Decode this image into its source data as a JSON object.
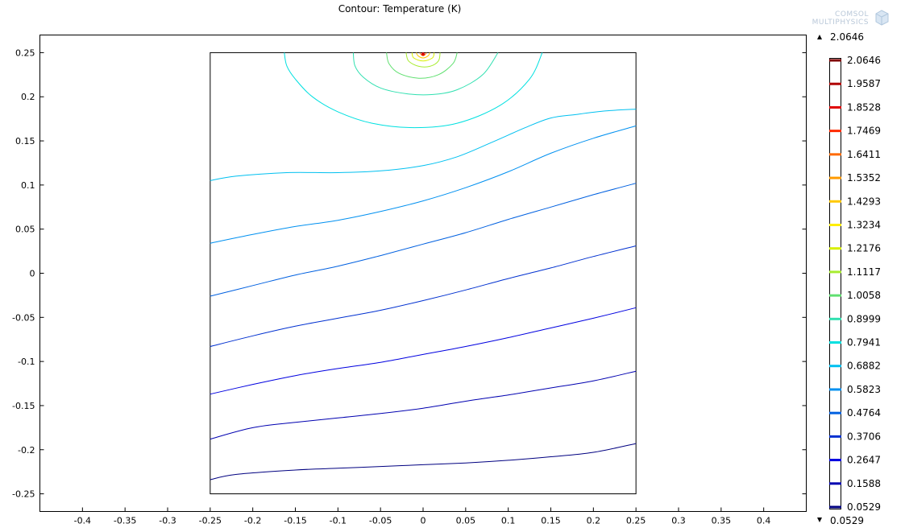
{
  "chart_data": {
    "type": "contour",
    "title": "Contour: Temperature (K)",
    "xlim": [
      -0.45,
      0.45
    ],
    "ylim": [
      -0.27,
      0.27
    ],
    "x_ticks": [
      -0.4,
      -0.35,
      -0.3,
      -0.25,
      -0.2,
      -0.15,
      -0.1,
      -0.05,
      0,
      0.05,
      0.1,
      0.15,
      0.2,
      0.25,
      0.3,
      0.35,
      0.4
    ],
    "x_tick_labels": [
      "-0.4",
      "-0.35",
      "-0.3",
      "-0.25",
      "-0.2",
      "-0.15",
      "-0.1",
      "-0.05",
      "0",
      "0.05",
      "0.1",
      "0.15",
      "0.2",
      "0.25",
      "0.3",
      "0.35",
      "0.4"
    ],
    "y_ticks": [
      0.25,
      0.2,
      0.15,
      0.1,
      0.05,
      0,
      -0.05,
      -0.1,
      -0.15,
      -0.2,
      -0.25
    ],
    "y_tick_labels": [
      "0.25",
      "0.2",
      "0.15",
      "0.1",
      "0.05",
      "0",
      "-0.05",
      "-0.1",
      "-0.15",
      "-0.2",
      "-0.25"
    ],
    "domain_box": {
      "x": [
        -0.25,
        0.25
      ],
      "y": [
        -0.25,
        0.25
      ]
    },
    "legend": {
      "max_label": "2.0646",
      "min_label": "0.0529",
      "levels": [
        {
          "label": "2.0646",
          "color": "#800000"
        },
        {
          "label": "1.9587",
          "color": "#b00000"
        },
        {
          "label": "1.8528",
          "color": "#e00000"
        },
        {
          "label": "1.7469",
          "color": "#ff2a00"
        },
        {
          "label": "1.6411",
          "color": "#ff6a00"
        },
        {
          "label": "1.5352",
          "color": "#ff9a00"
        },
        {
          "label": "1.4293",
          "color": "#ffc800"
        },
        {
          "label": "1.3234",
          "color": "#ffee00"
        },
        {
          "label": "1.2176",
          "color": "#d8f000"
        },
        {
          "label": "1.1117",
          "color": "#a8ec30"
        },
        {
          "label": "1.0058",
          "color": "#60e070"
        },
        {
          "label": "0.8999",
          "color": "#30e0b0"
        },
        {
          "label": "0.7941",
          "color": "#00e0e0"
        },
        {
          "label": "0.6882",
          "color": "#00c0f0"
        },
        {
          "label": "0.5823",
          "color": "#0090f0"
        },
        {
          "label": "0.4764",
          "color": "#0060e0"
        },
        {
          "label": "0.3706",
          "color": "#0030d0"
        },
        {
          "label": "0.2647",
          "color": "#0000e0"
        },
        {
          "label": "0.1588",
          "color": "#0000b0"
        },
        {
          "label": "0.0529",
          "color": "#000080"
        }
      ]
    },
    "contours": [
      {
        "level": "1.6411",
        "color": "#ff6a00",
        "points": [
          [
            -0.004,
            0.25
          ],
          [
            -0.002,
            0.2475
          ],
          [
            0,
            0.2465
          ],
          [
            0.002,
            0.2475
          ],
          [
            0.004,
            0.25
          ]
        ]
      },
      {
        "level": "1.4293",
        "color": "#ffc800",
        "points": [
          [
            -0.008,
            0.25
          ],
          [
            -0.006,
            0.2465
          ],
          [
            0,
            0.244
          ],
          [
            0.006,
            0.2465
          ],
          [
            0.008,
            0.25
          ]
        ]
      },
      {
        "level": "1.2176",
        "color": "#d8f000",
        "points": [
          [
            -0.013,
            0.25
          ],
          [
            -0.011,
            0.244
          ],
          [
            0,
            0.2405
          ],
          [
            0.011,
            0.244
          ],
          [
            0.013,
            0.25
          ]
        ]
      },
      {
        "level": "1.1117",
        "color": "#a8ec30",
        "points": [
          [
            -0.02,
            0.25
          ],
          [
            -0.017,
            0.2405
          ],
          [
            -0.005,
            0.2345
          ],
          [
            0.008,
            0.2345
          ],
          [
            0.018,
            0.2405
          ],
          [
            0.02,
            0.25
          ]
        ]
      },
      {
        "level": "1.0058",
        "color": "#60e070",
        "points": [
          [
            -0.043,
            0.25
          ],
          [
            -0.04,
            0.2375
          ],
          [
            -0.028,
            0.2265
          ],
          [
            -0.005,
            0.221
          ],
          [
            0.018,
            0.225
          ],
          [
            0.035,
            0.2375
          ],
          [
            0.04,
            0.25
          ]
        ]
      },
      {
        "level": "0.8999",
        "color": "#30e0b0",
        "points": [
          [
            -0.082,
            0.25
          ],
          [
            -0.08,
            0.235
          ],
          [
            -0.07,
            0.222
          ],
          [
            -0.05,
            0.21
          ],
          [
            -0.02,
            0.2035
          ],
          [
            0.01,
            0.2025
          ],
          [
            0.04,
            0.208
          ],
          [
            0.07,
            0.225
          ],
          [
            0.088,
            0.25
          ]
        ]
      },
      {
        "level": "0.7941",
        "color": "#00e0e0",
        "points": [
          [
            -0.163,
            0.25
          ],
          [
            -0.16,
            0.235
          ],
          [
            -0.15,
            0.22
          ],
          [
            -0.13,
            0.2
          ],
          [
            -0.1,
            0.183
          ],
          [
            -0.06,
            0.17
          ],
          [
            -0.01,
            0.165
          ],
          [
            0.04,
            0.17
          ],
          [
            0.09,
            0.19
          ],
          [
            0.125,
            0.22
          ],
          [
            0.14,
            0.25
          ]
        ]
      },
      {
        "level": "0.6882",
        "color": "#00c0f0",
        "points": [
          [
            -0.25,
            0.105
          ],
          [
            -0.22,
            0.11
          ],
          [
            -0.16,
            0.114
          ],
          [
            -0.1,
            0.114
          ],
          [
            -0.05,
            0.116
          ],
          [
            0,
            0.122
          ],
          [
            0.04,
            0.132
          ],
          [
            0.08,
            0.148
          ],
          [
            0.12,
            0.165
          ],
          [
            0.15,
            0.176
          ],
          [
            0.18,
            0.18
          ],
          [
            0.215,
            0.184
          ],
          [
            0.25,
            0.186
          ]
        ]
      },
      {
        "level": "0.5823",
        "color": "#0090f0",
        "points": [
          [
            -0.25,
            0.034
          ],
          [
            -0.2,
            0.044
          ],
          [
            -0.15,
            0.053
          ],
          [
            -0.1,
            0.06
          ],
          [
            -0.05,
            0.07
          ],
          [
            0,
            0.082
          ],
          [
            0.05,
            0.097
          ],
          [
            0.1,
            0.115
          ],
          [
            0.15,
            0.136
          ],
          [
            0.2,
            0.153
          ],
          [
            0.25,
            0.167
          ]
        ]
      },
      {
        "level": "0.4764",
        "color": "#0060e0",
        "points": [
          [
            -0.25,
            -0.026
          ],
          [
            -0.2,
            -0.014
          ],
          [
            -0.15,
            -0.002
          ],
          [
            -0.1,
            0.008
          ],
          [
            -0.05,
            0.02
          ],
          [
            0,
            0.033
          ],
          [
            0.05,
            0.046
          ],
          [
            0.1,
            0.061
          ],
          [
            0.15,
            0.075
          ],
          [
            0.2,
            0.089
          ],
          [
            0.25,
            0.102
          ]
        ]
      },
      {
        "level": "0.3706",
        "color": "#0030d0",
        "points": [
          [
            -0.25,
            -0.083
          ],
          [
            -0.2,
            -0.071
          ],
          [
            -0.15,
            -0.06
          ],
          [
            -0.1,
            -0.051
          ],
          [
            -0.05,
            -0.042
          ],
          [
            0,
            -0.031
          ],
          [
            0.05,
            -0.019
          ],
          [
            0.1,
            -0.006
          ],
          [
            0.15,
            0.006
          ],
          [
            0.2,
            0.019
          ],
          [
            0.25,
            0.031
          ]
        ]
      },
      {
        "level": "0.2647",
        "color": "#0000e0",
        "points": [
          [
            -0.25,
            -0.137
          ],
          [
            -0.2,
            -0.126
          ],
          [
            -0.15,
            -0.116
          ],
          [
            -0.1,
            -0.108
          ],
          [
            -0.05,
            -0.101
          ],
          [
            0,
            -0.092
          ],
          [
            0.05,
            -0.083
          ],
          [
            0.1,
            -0.073
          ],
          [
            0.15,
            -0.062
          ],
          [
            0.2,
            -0.051
          ],
          [
            0.25,
            -0.039
          ]
        ]
      },
      {
        "level": "0.1588",
        "color": "#0000b0",
        "points": [
          [
            -0.25,
            -0.188
          ],
          [
            -0.2,
            -0.175
          ],
          [
            -0.15,
            -0.169
          ],
          [
            -0.1,
            -0.164
          ],
          [
            -0.05,
            -0.159
          ],
          [
            0,
            -0.153
          ],
          [
            0.05,
            -0.145
          ],
          [
            0.1,
            -0.138
          ],
          [
            0.15,
            -0.13
          ],
          [
            0.2,
            -0.122
          ],
          [
            0.25,
            -0.111
          ]
        ]
      },
      {
        "level": "0.0529",
        "color": "#000080",
        "points": [
          [
            -0.25,
            -0.234
          ],
          [
            -0.22,
            -0.228
          ],
          [
            -0.15,
            -0.223
          ],
          [
            -0.1,
            -0.221
          ],
          [
            -0.05,
            -0.219
          ],
          [
            0,
            -0.217
          ],
          [
            0.05,
            -0.215
          ],
          [
            0.1,
            -0.212
          ],
          [
            0.15,
            -0.208
          ],
          [
            0.2,
            -0.203
          ],
          [
            0.25,
            -0.193
          ]
        ]
      }
    ]
  },
  "logo": {
    "line1": "COMSOL",
    "line2": "MULTIPHYSICS"
  }
}
